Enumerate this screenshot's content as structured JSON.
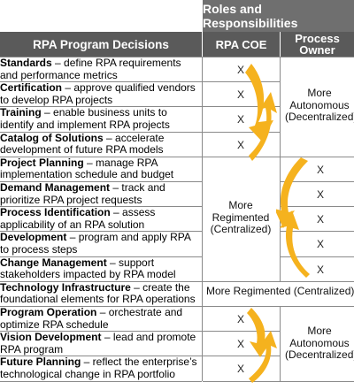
{
  "header": {
    "group_title": "Roles and Responsibilities",
    "col_decisions": "RPA Program Decisions",
    "col_coe": "RPA COE",
    "col_po_line1": "Process",
    "col_po_line2": "Owner"
  },
  "rows": [
    {
      "title": "Standards",
      "line1": " – define RPA requirements",
      "line2": "and performance metrics"
    },
    {
      "title": "Certification",
      "line1": " – approve qualified vendors",
      "line2": "to develop RPA projects"
    },
    {
      "title": "Training",
      "line1": " – enable business units to",
      "line2": "identify and implement RPA projects"
    },
    {
      "title": "Catalog of Solutions",
      "line1": " – accelerate",
      "line2": "development of future RPA models"
    },
    {
      "title": "Project Planning",
      "line1": " – manage RPA",
      "line2": "implementation schedule and budget"
    },
    {
      "title": "Demand Management",
      "line1": " – track and",
      "line2": "prioritize RPA project requests"
    },
    {
      "title": "Process Identification",
      "line1": " – assess",
      "line2": "applicability of an RPA solution"
    },
    {
      "title": "Development",
      "line1": " – program and apply RPA",
      "line2": "to process steps"
    },
    {
      "title": "Change Management",
      "line1": " – support",
      "line2": "stakeholders impacted by RPA model"
    },
    {
      "title": "Technology Infrastructure",
      "line1": " – create the",
      "line2": "foundational elements for RPA operations"
    },
    {
      "title": "Program Operation",
      "line1": " – orchestrate and",
      "line2": "optimize RPA schedule"
    },
    {
      "title": "Vision Development",
      "line1": " – lead and promote",
      "line2": "RPA program"
    },
    {
      "title": "Future Planning",
      "line1": " – reflect the enterprise’s",
      "line2": "technological change in RPA portfolio"
    }
  ],
  "marks": {
    "x": "X",
    "coe_rows": [
      0,
      1,
      2,
      3,
      10,
      11,
      12
    ],
    "po_rows": [
      4,
      5,
      6,
      7,
      8
    ]
  },
  "labels": {
    "decentral_1": [
      "More",
      "Autonomous",
      "(Decentralized)"
    ],
    "central": [
      "More",
      "Regimented",
      "(Centralized)"
    ],
    "tech_infra": "More Regimented (Centralized)",
    "decentral_2": [
      "More",
      "Autonomous",
      "(Decentralized)"
    ]
  },
  "colors": {
    "header_dark": "#5a5a5a",
    "header_light": "#6f6f6f",
    "arrow": "#f5b21e",
    "grid": "#8a8a8a"
  }
}
